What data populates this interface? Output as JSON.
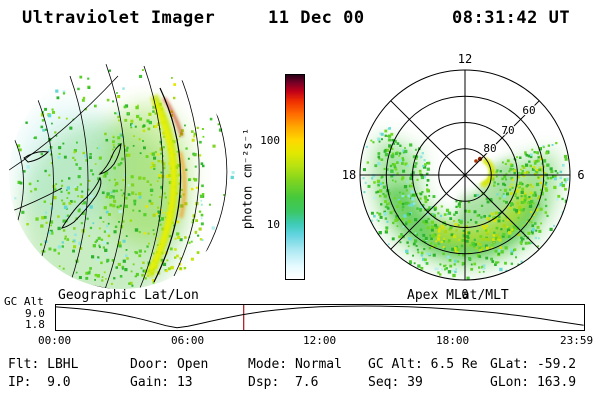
{
  "header": {
    "title": "Ultraviolet Imager",
    "date": "11 Dec 00",
    "time": "08:31:42 UT"
  },
  "colorbar": {
    "unit_label": "photon cm⁻²s⁻¹",
    "tick_high": "100",
    "tick_low": "10"
  },
  "left_panel": {
    "caption": "Geographic Lat/Lon"
  },
  "right_panel": {
    "caption": "Apex MLat/MLT",
    "mlt_top": "12",
    "mlt_right": "6",
    "mlt_bottom": "0",
    "mlt_left": "18",
    "lat_rings": [
      "80",
      "70",
      "60"
    ]
  },
  "strip_chart": {
    "ylabel": "GC Alt",
    "ytick_top": "9.0",
    "ytick_bottom": "1.8",
    "xticks": [
      "00:00",
      "06:00",
      "12:00",
      "18:00",
      "23:59"
    ]
  },
  "status": {
    "row1": [
      "Flt: LBHL",
      "Door: Open",
      "Mode: Normal",
      "GC Alt: 6.5 Re",
      "GLat: -59.2"
    ],
    "row2": [
      "IP:  9.0",
      "Gain: 13",
      "Dsp:  7.6",
      "Seq: 39",
      "GLon: 163.9"
    ]
  },
  "chart_data": {
    "type": "line",
    "title": "",
    "ylabel": "GC Alt",
    "xlabel": "",
    "xticks": [
      "00:00",
      "06:00",
      "12:00",
      "18:00",
      "23:59"
    ],
    "x_range_hours": [
      0,
      24
    ],
    "y_range": [
      1.8,
      9.0
    ],
    "yticks": [
      9.0,
      1.8
    ],
    "marker_hour": 8.53,
    "marker_color": "#aa1111",
    "points": [
      [
        0,
        8.7
      ],
      [
        0.5,
        8.45
      ],
      [
        1,
        8.15
      ],
      [
        1.5,
        7.75
      ],
      [
        2,
        7.3
      ],
      [
        2.5,
        6.75
      ],
      [
        3,
        6.1
      ],
      [
        3.5,
        5.35
      ],
      [
        4,
        4.5
      ],
      [
        4.5,
        3.55
      ],
      [
        5,
        2.55
      ],
      [
        5.5,
        1.85
      ],
      [
        6,
        2.35
      ],
      [
        6.5,
        3.15
      ],
      [
        7,
        3.95
      ],
      [
        7.5,
        4.75
      ],
      [
        8,
        5.5
      ],
      [
        8.5,
        6.2
      ],
      [
        9,
        6.75
      ],
      [
        9.5,
        7.25
      ],
      [
        10,
        7.7
      ],
      [
        11,
        8.35
      ],
      [
        12,
        8.75
      ],
      [
        13,
        8.95
      ],
      [
        14,
        9.0
      ],
      [
        15,
        8.95
      ],
      [
        16,
        8.75
      ],
      [
        17,
        8.45
      ],
      [
        18,
        8.0
      ],
      [
        19,
        7.45
      ],
      [
        20,
        6.75
      ],
      [
        21,
        5.9
      ],
      [
        22,
        4.9
      ],
      [
        23,
        3.75
      ],
      [
        23.98,
        2.7
      ]
    ]
  }
}
